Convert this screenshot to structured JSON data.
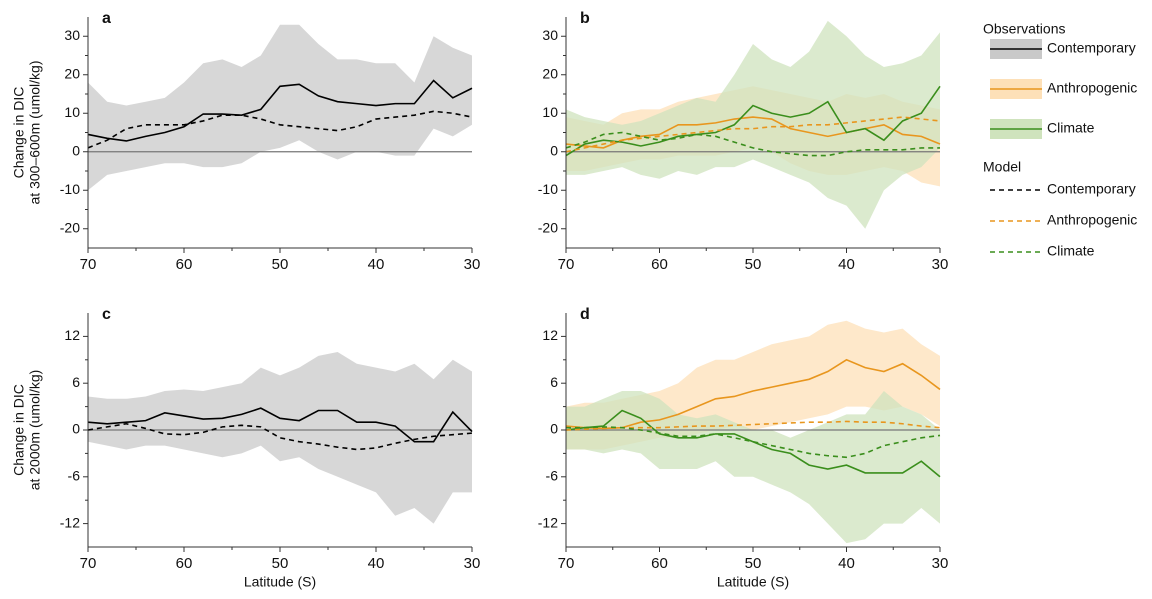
{
  "chart_data": [
    {
      "type": "line",
      "panel_label": "a",
      "ylabel": [
        "Change in DIC",
        "at 300–600m (umol/kg)"
      ],
      "x": [
        70,
        68,
        66,
        64,
        62,
        60,
        58,
        56,
        54,
        52,
        50,
        48,
        46,
        44,
        42,
        40,
        38,
        36,
        34,
        32,
        30
      ],
      "xlim": [
        70,
        30
      ],
      "xticks": [
        70,
        60,
        50,
        40,
        30
      ],
      "xminor": [
        65,
        55,
        45,
        35
      ],
      "ylim": [
        -25,
        35
      ],
      "yticks": [
        -20,
        -10,
        0,
        10,
        20,
        30
      ],
      "yminor": [
        -15,
        -5,
        5,
        15,
        25
      ],
      "zero_line": true,
      "series": [
        {
          "source": "Observations",
          "name": "Contemporary",
          "color": "#000000",
          "band_color": "#c9c9c9",
          "style": "solid",
          "values": [
            4.5,
            3.5,
            2.8,
            4,
            5,
            6.5,
            9.8,
            9.8,
            9.5,
            11,
            17,
            17.5,
            14.5,
            13,
            12.5,
            12,
            12.5,
            12.5,
            18.5,
            14,
            16.5
          ],
          "upper": [
            18,
            13,
            12,
            13,
            14,
            18,
            23,
            24,
            22,
            25,
            33,
            33,
            28,
            24,
            24,
            23,
            23,
            18,
            30,
            27,
            25
          ],
          "lower": [
            -10,
            -6,
            -5,
            -4,
            -3,
            -3,
            -4,
            -4,
            -3,
            0,
            1,
            3,
            0,
            -2,
            0,
            0,
            -1,
            -1,
            6,
            4,
            7
          ]
        },
        {
          "source": "Model",
          "name": "Contemporary",
          "color": "#000000",
          "style": "dashed",
          "values": [
            1,
            3,
            6,
            7,
            7,
            7,
            8,
            9.5,
            9.5,
            8.5,
            7,
            6.5,
            6,
            5.5,
            6.5,
            8.5,
            9,
            9.5,
            10.5,
            10,
            9
          ]
        }
      ]
    },
    {
      "type": "line",
      "panel_label": "b",
      "x": [
        70,
        68,
        66,
        64,
        62,
        60,
        58,
        56,
        54,
        52,
        50,
        48,
        46,
        44,
        42,
        40,
        38,
        36,
        34,
        32,
        30
      ],
      "xlim": [
        70,
        30
      ],
      "xticks": [
        70,
        60,
        50,
        40,
        30
      ],
      "xminor": [
        65,
        55,
        45,
        35
      ],
      "ylim": [
        -25,
        35
      ],
      "yticks": [
        -20,
        -10,
        0,
        10,
        20,
        30
      ],
      "yminor": [
        -15,
        -5,
        5,
        15,
        25
      ],
      "zero_line": true,
      "series": [
        {
          "source": "Observations",
          "name": "Anthropogenic",
          "color": "#e8961e",
          "band_color": "#fde0b8",
          "style": "solid",
          "values": [
            2,
            1.5,
            1,
            3,
            4,
            4.5,
            7,
            7,
            7.5,
            8.5,
            9,
            8.5,
            6,
            5,
            4,
            5,
            6,
            7,
            4.5,
            4,
            2
          ],
          "upper": [
            9,
            8,
            7,
            10,
            11,
            11,
            13,
            14,
            15,
            16,
            17,
            16,
            15,
            14,
            13,
            15,
            14,
            15,
            13,
            12,
            11
          ],
          "lower": [
            -5,
            -5,
            -4,
            -3,
            -2,
            -2,
            -1,
            -1,
            -1,
            0,
            1,
            0,
            -3,
            -5,
            -6,
            -6,
            -5,
            -4,
            -5,
            -8,
            -9
          ]
        },
        {
          "source": "Observations",
          "name": "Climate",
          "color": "#3a8e1c",
          "band_color": "#cfe3bd",
          "style": "solid",
          "values": [
            -1,
            2,
            3,
            2.5,
            1.5,
            2.5,
            4,
            4.5,
            5,
            7,
            12,
            10,
            9,
            10,
            13,
            5,
            6,
            3,
            8,
            10,
            17
          ],
          "upper": [
            11,
            9,
            8,
            7,
            8,
            10,
            12,
            14,
            13,
            20,
            28,
            24,
            22,
            26,
            34,
            30,
            25,
            22,
            23,
            25,
            31
          ],
          "lower": [
            -6,
            -6,
            -5,
            -4,
            -6,
            -7,
            -5,
            -6,
            -4,
            -4,
            -2,
            -4,
            -6,
            -8,
            -12,
            -14,
            -20,
            -10,
            -6,
            -4,
            1
          ]
        },
        {
          "source": "Model",
          "name": "Anthropogenic",
          "color": "#e8961e",
          "style": "dashed",
          "values": [
            0,
            1,
            2,
            3,
            3.5,
            4,
            4.5,
            5,
            5.5,
            6,
            6,
            6.5,
            6.5,
            7,
            7,
            7.5,
            8,
            8.5,
            9,
            8.5,
            8
          ]
        },
        {
          "source": "Model",
          "name": "Climate",
          "color": "#3a8e1c",
          "style": "dashed",
          "values": [
            1,
            2.5,
            4.5,
            5,
            4,
            3,
            3.5,
            4.5,
            4,
            2.5,
            1,
            0,
            -0.5,
            -1,
            -1,
            0,
            0.5,
            0.5,
            0.5,
            1,
            1
          ]
        }
      ]
    },
    {
      "type": "line",
      "panel_label": "c",
      "ylabel": [
        "Change in DIC",
        "at 2000m (umol/kg)"
      ],
      "xlabel": "Latitude (S)",
      "x": [
        70,
        68,
        66,
        64,
        62,
        60,
        58,
        56,
        54,
        52,
        50,
        48,
        46,
        44,
        42,
        40,
        38,
        36,
        34,
        32,
        30
      ],
      "xlim": [
        70,
        30
      ],
      "xticks": [
        70,
        60,
        50,
        40,
        30
      ],
      "xminor": [
        65,
        55,
        45,
        35
      ],
      "ylim": [
        -15,
        15
      ],
      "yticks": [
        -12,
        -6,
        0,
        6,
        12
      ],
      "yminor": [
        -9,
        -3,
        3,
        9
      ],
      "zero_line": true,
      "series": [
        {
          "source": "Observations",
          "name": "Contemporary",
          "color": "#000000",
          "band_color": "#c9c9c9",
          "style": "solid",
          "values": [
            1,
            0.8,
            1,
            1.2,
            2.2,
            1.8,
            1.4,
            1.5,
            2,
            2.8,
            1.5,
            1.2,
            2.5,
            2.5,
            1,
            1,
            0.5,
            -1.5,
            -1.5,
            2.3,
            -0.2
          ],
          "upper": [
            4.3,
            4,
            4,
            4.3,
            5,
            5.2,
            5,
            5.5,
            6,
            8,
            7,
            8,
            9.5,
            10,
            8.5,
            8,
            7.5,
            8.5,
            6.5,
            9,
            7.5
          ],
          "lower": [
            -1.5,
            -2,
            -2.5,
            -2,
            -2,
            -2.5,
            -3,
            -3.5,
            -3,
            -2,
            -4,
            -3.5,
            -5,
            -6,
            -7,
            -8,
            -11,
            -10,
            -12,
            -8,
            -8
          ]
        },
        {
          "source": "Model",
          "name": "Contemporary",
          "color": "#000000",
          "style": "dashed",
          "values": [
            0,
            0.4,
            0.8,
            0.2,
            -0.5,
            -0.6,
            -0.3,
            0.4,
            0.6,
            0.4,
            -1,
            -1.5,
            -1.8,
            -2.2,
            -2.5,
            -2.3,
            -1.7,
            -1.2,
            -0.8,
            -0.6,
            -0.4
          ]
        }
      ]
    },
    {
      "type": "line",
      "panel_label": "d",
      "xlabel": "Latitude (S)",
      "x": [
        70,
        68,
        66,
        64,
        62,
        60,
        58,
        56,
        54,
        52,
        50,
        48,
        46,
        44,
        42,
        40,
        38,
        36,
        34,
        32,
        30
      ],
      "xlim": [
        70,
        30
      ],
      "xticks": [
        70,
        60,
        50,
        40,
        30
      ],
      "xminor": [
        65,
        55,
        45,
        35
      ],
      "ylim": [
        -15,
        15
      ],
      "yticks": [
        -12,
        -6,
        0,
        6,
        12
      ],
      "yminor": [
        -9,
        -3,
        3,
        9
      ],
      "zero_line": true,
      "series": [
        {
          "source": "Observations",
          "name": "Anthropogenic",
          "color": "#e8961e",
          "band_color": "#fde0b8",
          "style": "solid",
          "values": [
            0.5,
            0.3,
            0.2,
            0.3,
            1,
            1.3,
            2,
            3,
            4,
            4.3,
            5,
            5.5,
            6,
            6.5,
            7.5,
            9,
            8,
            7.5,
            8.5,
            7,
            5.2
          ],
          "upper": [
            3,
            3.5,
            3.5,
            4,
            4.5,
            5,
            6,
            8,
            9,
            9,
            10,
            11,
            11.5,
            12,
            13.5,
            14,
            13,
            12.5,
            13,
            11,
            9.5
          ],
          "lower": [
            -2.5,
            -2.5,
            -2.5,
            -2,
            -1.5,
            -1,
            -1,
            -0.5,
            0,
            0.5,
            0,
            0.5,
            1,
            1.5,
            2,
            3,
            3,
            2.5,
            3,
            2,
            0.5
          ]
        },
        {
          "source": "Observations",
          "name": "Climate",
          "color": "#3a8e1c",
          "band_color": "#cfe3bd",
          "style": "solid",
          "values": [
            0,
            0.3,
            0.5,
            2.5,
            1.5,
            -0.5,
            -1,
            -1,
            -0.5,
            -0.5,
            -1.5,
            -2.5,
            -3,
            -4.5,
            -5,
            -4.5,
            -5.5,
            -5.5,
            -5.5,
            -4,
            -6
          ],
          "upper": [
            3,
            3,
            4,
            5,
            5,
            4,
            2,
            1.5,
            2,
            1,
            0,
            0,
            -1,
            0,
            1,
            2,
            2,
            5,
            3,
            2,
            0
          ],
          "lower": [
            -2.5,
            -2.5,
            -3,
            -2.5,
            -3,
            -5,
            -5,
            -5,
            -4,
            -6,
            -6,
            -7,
            -8,
            -9.5,
            -12,
            -14.5,
            -14,
            -12,
            -12,
            -10,
            -12
          ]
        },
        {
          "source": "Model",
          "name": "Anthropogenic",
          "color": "#e8961e",
          "style": "dashed",
          "values": [
            0,
            0.1,
            0.2,
            0.3,
            0.3,
            0.3,
            0.4,
            0.5,
            0.5,
            0.6,
            0.7,
            0.8,
            0.9,
            1,
            1,
            1.1,
            1,
            1,
            0.8,
            0.5,
            0.3
          ]
        },
        {
          "source": "Model",
          "name": "Climate",
          "color": "#3a8e1c",
          "style": "dashed",
          "values": [
            0.3,
            0.3,
            0.4,
            0.3,
            0,
            -0.4,
            -0.8,
            -0.8,
            -0.5,
            -1,
            -1.5,
            -2,
            -2.5,
            -3,
            -3.3,
            -3.5,
            -3,
            -2,
            -1.5,
            -1,
            -0.7
          ]
        }
      ]
    }
  ],
  "legend": {
    "groups": [
      {
        "title": "Observations",
        "entries": [
          {
            "name": "Contemporary",
            "color": "#000000",
            "band_color": "#c9c9c9",
            "style": "solid"
          },
          {
            "name": "Anthropogenic",
            "color": "#e8961e",
            "band_color": "#fde0b8",
            "style": "solid"
          },
          {
            "name": "Climate",
            "color": "#3a8e1c",
            "band_color": "#cfe3bd",
            "style": "solid"
          }
        ]
      },
      {
        "title": "Model",
        "entries": [
          {
            "name": "Contemporary",
            "color": "#000000",
            "style": "dashed"
          },
          {
            "name": "Anthropogenic",
            "color": "#e8961e",
            "style": "dashed"
          },
          {
            "name": "Climate",
            "color": "#3a8e1c",
            "style": "dashed"
          }
        ]
      }
    ]
  }
}
